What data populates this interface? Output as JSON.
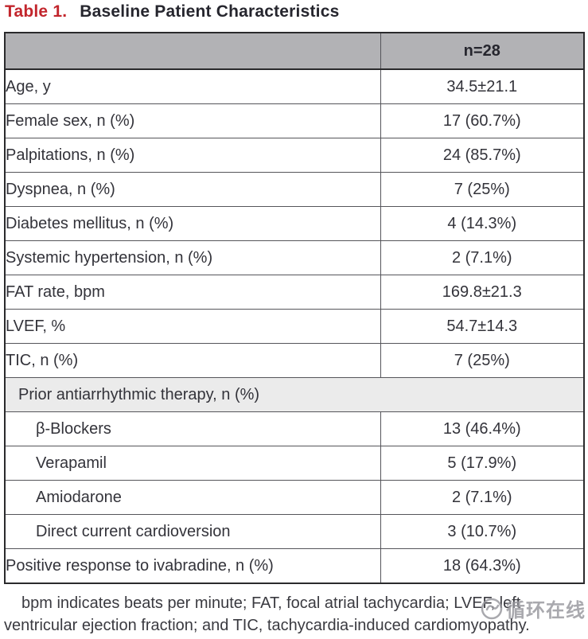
{
  "title": {
    "label": "Table 1.",
    "text": "Baseline Patient Characteristics"
  },
  "table": {
    "header": {
      "col1": "",
      "col2": "n=28"
    },
    "rows": [
      {
        "type": "data",
        "label": "Age, y",
        "value": "34.5±21.1"
      },
      {
        "type": "data",
        "label": "Female sex, n (%)",
        "value": "17 (60.7%)"
      },
      {
        "type": "data",
        "label": "Palpitations, n (%)",
        "value": "24 (85.7%)"
      },
      {
        "type": "data",
        "label": "Dyspnea, n (%)",
        "value": "7 (25%)"
      },
      {
        "type": "data",
        "label": "Diabetes mellitus, n (%)",
        "value": "4 (14.3%)"
      },
      {
        "type": "data",
        "label": "Systemic hypertension, n (%)",
        "value": "2 (7.1%)"
      },
      {
        "type": "data",
        "label": "FAT rate, bpm",
        "value": "169.8±21.3"
      },
      {
        "type": "data",
        "label": "LVEF, %",
        "value": "54.7±14.3"
      },
      {
        "type": "data",
        "label": "TIC, n (%)",
        "value": "7 (25%)"
      },
      {
        "type": "section",
        "label": "Prior antiarrhythmic therapy, n (%)",
        "value": ""
      },
      {
        "type": "sub",
        "label": "β-Blockers",
        "value": "13 (46.4%)"
      },
      {
        "type": "sub",
        "label": "Verapamil",
        "value": "5 (17.9%)"
      },
      {
        "type": "sub",
        "label": "Amiodarone",
        "value": "2 (7.1%)"
      },
      {
        "type": "sub",
        "label": "Direct current cardioversion",
        "value": "3 (10.7%)"
      },
      {
        "type": "data",
        "label": "Positive response to ivabradine, n (%)",
        "value": "18 (64.3%)"
      }
    ]
  },
  "footnote": "bpm indicates beats per minute; FAT, focal atrial tachycardia; LVEF, left ventricular ejection fraction; and TIC, tachycardia-induced cardiomyopathy.",
  "watermark": {
    "text": "循环在线"
  },
  "colors": {
    "title_accent": "#c2252c",
    "header_bg": "#b2b2b5",
    "section_bg": "#ebebeb",
    "border_outer": "#2a2a2c",
    "border_inner": "#55555a",
    "text": "#33333a",
    "watermark_gray": "#97979d"
  }
}
